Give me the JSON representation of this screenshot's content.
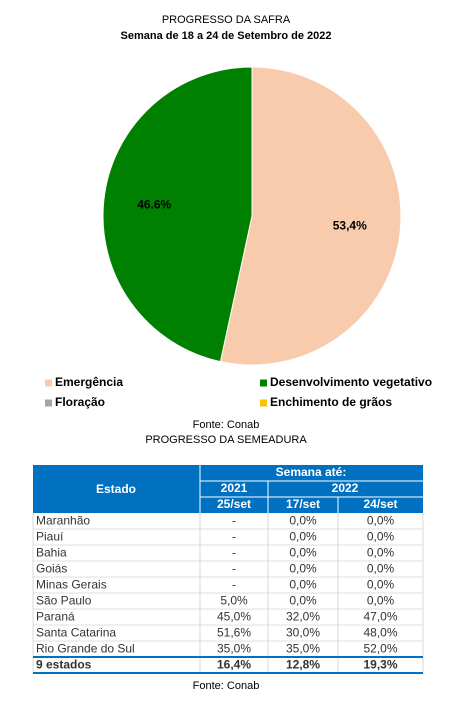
{
  "chart_data": {
    "type": "pie",
    "title": "PROGRESSO DA SAFRA",
    "subtitle": "Semana de 18 a 24 de Setembro de 2022",
    "categories": [
      "Emergência",
      "Desenvolvimento vegetativo",
      "Floração",
      "Enchimento de grãos"
    ],
    "values": [
      53.4,
      46.6,
      0,
      0
    ],
    "value_labels": [
      "53,4%",
      "46.6%",
      null,
      null
    ],
    "colors": [
      "#f8cbad",
      "#008000",
      "#a5a5a5",
      "#ffc000"
    ],
    "source": "Fonte: Conab"
  },
  "table": {
    "title": "PROGRESSO DA SEMEADURA",
    "columns": {
      "estado": "Estado",
      "semana": "Semana até:",
      "years": [
        "2021",
        "2022"
      ],
      "dates": [
        "25/set",
        "17/set",
        "24/set"
      ]
    },
    "rows": [
      [
        "Maranhão",
        "-",
        "0,0%",
        "0,0%"
      ],
      [
        "Piauí",
        "-",
        "0,0%",
        "0,0%"
      ],
      [
        "Bahia",
        "-",
        "0,0%",
        "0,0%"
      ],
      [
        "Goiás",
        "-",
        "0,0%",
        "0,0%"
      ],
      [
        "Minas Gerais",
        "-",
        "0,0%",
        "0,0%"
      ],
      [
        "São Paulo",
        "5,0%",
        "0,0%",
        "0,0%"
      ],
      [
        "Paraná",
        "45,0%",
        "32,0%",
        "47,0%"
      ],
      [
        "Santa Catarina",
        "51,6%",
        "30,0%",
        "48,0%"
      ],
      [
        "Rio Grande do Sul",
        "35,0%",
        "35,0%",
        "52,0%"
      ]
    ],
    "total": [
      "9 estados",
      "16,4%",
      "12,8%",
      "19,3%"
    ],
    "source": "Fonte: Conab"
  }
}
